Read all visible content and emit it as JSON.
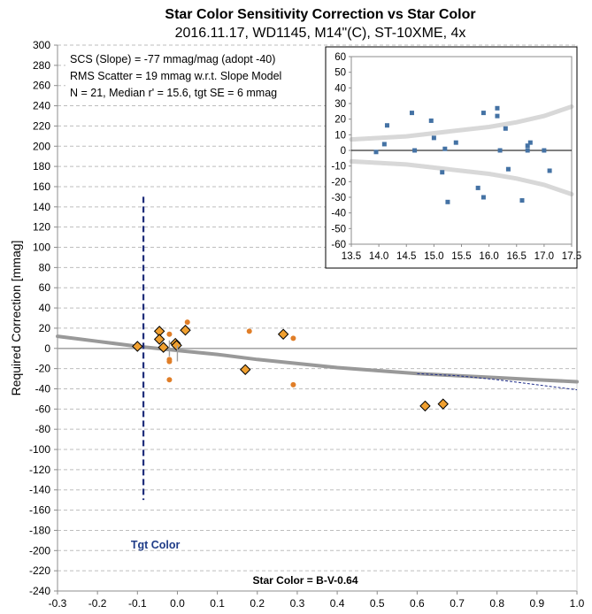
{
  "chart_data": [
    {
      "type": "scatter",
      "title": "Star Color Sensitivity Correction vs Star Color",
      "subtitle": "2016.11.17, WD1145, M14\"(C), ST-10XME, 4x",
      "xlabel": "Star Color = B-V-0.64",
      "ylabel": "Required Correction [mmag]",
      "xlim": [
        -0.3,
        1.0
      ],
      "ylim": [
        -240,
        300
      ],
      "x_ticks": [
        "-0.3",
        "-0.2",
        "-0.1",
        "0.0",
        "0.1",
        "0.2",
        "0.3",
        "0.4",
        "0.5",
        "0.6",
        "0.7",
        "0.8",
        "0.9",
        "1.0"
      ],
      "y_ticks": [
        "300",
        "280",
        "260",
        "240",
        "220",
        "200",
        "180",
        "160",
        "140",
        "120",
        "100",
        "80",
        "60",
        "40",
        "20",
        "0",
        "-20",
        "-40",
        "-60",
        "-80",
        "-100",
        "-120",
        "-140",
        "-160",
        "-180",
        "-200",
        "-220",
        "-240"
      ],
      "grid": "horizontal dashed",
      "annotations": [
        "SCS (Slope)  =  -77 mmag/mag (adopt -40)",
        "RMS Scatter = 19 mmag w.r.t. Slope Model",
        "N = 21,  Median r' = 15.6, tgt SE = 6 mmag"
      ],
      "target_label": "Tgt Color",
      "target_color": -0.085,
      "target_line_range": [
        -150,
        150
      ],
      "series": [
        {
          "marker": "diamond",
          "color": "#f0a030",
          "points": [
            [
              -0.1,
              2
            ],
            [
              -0.045,
              17
            ],
            [
              -0.045,
              9
            ],
            [
              -0.035,
              1
            ],
            [
              -0.005,
              5
            ],
            [
              -0.002,
              3
            ],
            [
              0.02,
              18
            ],
            [
              0.17,
              -21
            ],
            [
              0.265,
              14
            ],
            [
              0.62,
              -57
            ],
            [
              0.665,
              -55
            ]
          ]
        },
        {
          "marker": "circle",
          "color": "#e07e28",
          "points": [
            [
              -0.02,
              14
            ],
            [
              -0.02,
              -11
            ],
            [
              -0.02,
              -13
            ],
            [
              -0.02,
              -31
            ],
            [
              0.025,
              26
            ],
            [
              0.18,
              17
            ],
            [
              0.29,
              10
            ],
            [
              0.29,
              -36
            ]
          ]
        },
        {
          "marker": "error-bar",
          "color": "#a0a0a0",
          "points": [
            [
              -0.02,
              0
            ],
            [
              0.0,
              -5
            ]
          ]
        }
      ],
      "model_curve": {
        "color": "#999999",
        "points": [
          [
            -0.3,
            12
          ],
          [
            -0.2,
            7
          ],
          [
            -0.1,
            2
          ],
          [
            0.0,
            -2
          ],
          [
            0.1,
            -6
          ],
          [
            0.2,
            -11
          ],
          [
            0.3,
            -15
          ],
          [
            0.4,
            -19
          ],
          [
            0.5,
            -22
          ],
          [
            0.6,
            -25
          ],
          [
            0.7,
            -27
          ],
          [
            0.8,
            -29
          ],
          [
            0.9,
            -31
          ],
          [
            1.0,
            -33
          ]
        ]
      },
      "steep_model": {
        "color": "#1f2d8a",
        "points": [
          [
            0.6,
            -25
          ],
          [
            0.7,
            -27
          ],
          [
            0.8,
            -31
          ],
          [
            0.9,
            -36
          ],
          [
            1.0,
            -41
          ]
        ]
      }
    },
    {
      "type": "scatter",
      "position": "inset top-right",
      "xlim": [
        13.5,
        17.5
      ],
      "ylim": [
        -60,
        60
      ],
      "x_ticks": [
        "13.5",
        "14.0",
        "14.5",
        "15.0",
        "15.5",
        "16.0",
        "16.5",
        "17.0",
        "17.5"
      ],
      "y_ticks": [
        "60",
        "50",
        "40",
        "30",
        "20",
        "10",
        "0",
        "-10",
        "-20",
        "-30",
        "-40",
        "-50",
        "-60"
      ],
      "grid": "none",
      "series": [
        {
          "marker": "square",
          "color": "#4472a4",
          "points": [
            [
              13.95,
              -1
            ],
            [
              14.1,
              4
            ],
            [
              14.15,
              16
            ],
            [
              14.6,
              24
            ],
            [
              14.65,
              0
            ],
            [
              14.95,
              19
            ],
            [
              15.0,
              8
            ],
            [
              15.15,
              -14
            ],
            [
              15.2,
              1
            ],
            [
              15.25,
              -33
            ],
            [
              15.4,
              5
            ],
            [
              15.8,
              -24
            ],
            [
              15.9,
              24
            ],
            [
              15.9,
              -30
            ],
            [
              16.15,
              27
            ],
            [
              16.15,
              22
            ],
            [
              16.2,
              0
            ],
            [
              16.3,
              14
            ],
            [
              16.35,
              -12
            ],
            [
              16.6,
              -32
            ],
            [
              16.7,
              0
            ],
            [
              16.7,
              3
            ],
            [
              16.75,
              5
            ],
            [
              17.0,
              0
            ],
            [
              17.1,
              -13
            ]
          ]
        }
      ],
      "envelope_color": "#d8d8d8",
      "envelope_upper": [
        [
          13.5,
          7
        ],
        [
          14.5,
          9
        ],
        [
          15.5,
          13
        ],
        [
          16.0,
          15
        ],
        [
          16.5,
          18
        ],
        [
          17.0,
          22
        ],
        [
          17.5,
          28
        ]
      ],
      "envelope_lower": [
        [
          13.5,
          -7
        ],
        [
          14.5,
          -9
        ],
        [
          15.5,
          -13
        ],
        [
          16.0,
          -15
        ],
        [
          16.5,
          -18
        ],
        [
          17.0,
          -22
        ],
        [
          17.5,
          -28
        ]
      ]
    }
  ]
}
